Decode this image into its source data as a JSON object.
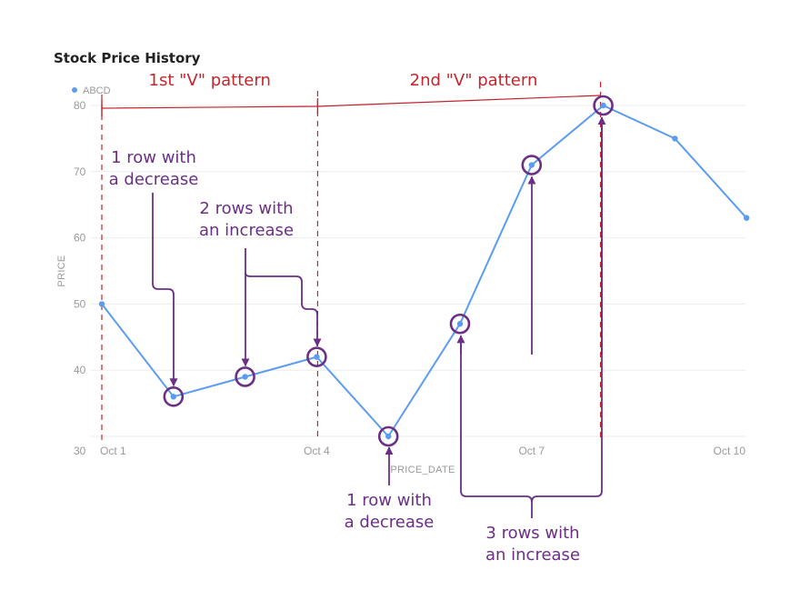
{
  "chart_data": {
    "type": "line",
    "title": "Stock Price History",
    "xlabel": "PRICE_DATE",
    "ylabel": "PRICE",
    "legend": {
      "position": "top-left",
      "entries": [
        "ABCD"
      ]
    },
    "grid": true,
    "ylim": [
      30,
      80
    ],
    "y_ticks": [
      "30",
      "40",
      "50",
      "60",
      "70",
      "80"
    ],
    "x_ticks": [
      {
        "label": "Oct 1",
        "day": 1
      },
      {
        "label": "Oct 4",
        "day": 4
      },
      {
        "label": "Oct 7",
        "day": 7
      },
      {
        "label": "Oct 10",
        "day": 10
      }
    ],
    "series": [
      {
        "name": "ABCD",
        "color": "#5b9cf0",
        "x": [
          "Oct 1",
          "Oct 2",
          "Oct 3",
          "Oct 4",
          "Oct 5",
          "Oct 6",
          "Oct 7",
          "Oct 8",
          "Oct 9",
          "Oct 10"
        ],
        "days": [
          1,
          2,
          3,
          4,
          5,
          6,
          7,
          8,
          9,
          10
        ],
        "values": [
          50,
          36,
          39,
          42,
          30,
          47,
          71,
          80,
          75,
          63
        ]
      }
    ],
    "highlighted_points": [
      "Oct 2",
      "Oct 3",
      "Oct 4",
      "Oct 5",
      "Oct 6",
      "Oct 7",
      "Oct 8"
    ],
    "annotations": {
      "patterns": [
        {
          "label": "1st \"V\" pattern",
          "start_day": 1,
          "end_day": 4
        },
        {
          "label": "2nd \"V\" pattern",
          "start_day": 4,
          "end_day": 8
        }
      ],
      "notes": [
        {
          "lines": [
            "1 row with",
            "a decrease"
          ]
        },
        {
          "lines": [
            "2 rows with",
            "an increase"
          ]
        },
        {
          "lines": [
            "1 row with",
            "a decrease"
          ]
        },
        {
          "lines": [
            "3 rows with",
            "an increase"
          ]
        }
      ]
    },
    "colors": {
      "line": "#5b9cf0",
      "pattern": "#c3262c",
      "note": "#6b2f86",
      "grid": "#ececec"
    }
  }
}
